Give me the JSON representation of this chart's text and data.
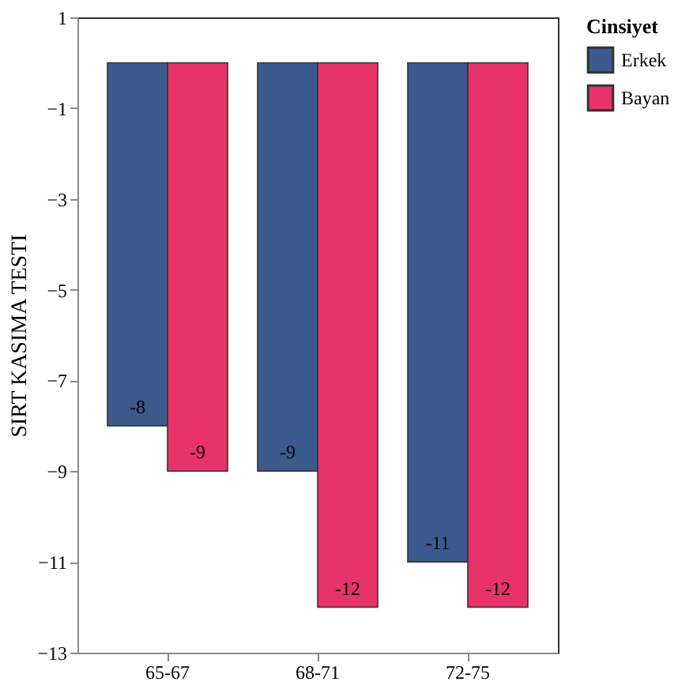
{
  "chart_data": {
    "type": "bar",
    "ylabel": "SIRT KASIMA TESTI",
    "legend_title": "Cinsiyet",
    "legend": "right",
    "grid": false,
    "data_labels": true,
    "categories": [
      "65-67",
      "68-71",
      "72-75"
    ],
    "ylim": [
      -13,
      1
    ],
    "yticks": [
      1,
      -1,
      -3,
      -5,
      -7,
      -9,
      -11,
      -13
    ],
    "series": [
      {
        "name": "Erkek",
        "color": "#3b5a8e",
        "values": [
          -8,
          -9,
          -11
        ]
      },
      {
        "name": "Bayan",
        "color": "#e8336a",
        "values": [
          -9,
          -12,
          -12
        ]
      }
    ]
  }
}
